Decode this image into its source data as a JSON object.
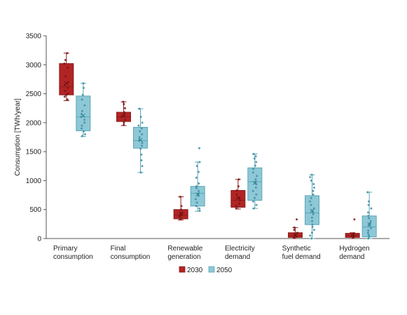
{
  "chart_data": {
    "type": "boxplot",
    "ylabel": "Consumption [TWh/year]",
    "xlabel": "",
    "ylim": [
      0,
      3500
    ],
    "yticks": [
      0,
      500,
      1000,
      1500,
      2000,
      2500,
      3000,
      3500
    ],
    "grid": false,
    "legend_position": "bottom",
    "categories": [
      [
        "Primary",
        "consumption"
      ],
      [
        "Final",
        "consumption"
      ],
      [
        "Renewable",
        "generation"
      ],
      [
        "Electricity",
        "demand"
      ],
      [
        "Synthetic",
        "fuel demand"
      ],
      [
        "Hydrogen",
        "demand"
      ]
    ],
    "series": [
      {
        "name": "2030",
        "color": "#b22424",
        "edge": "#8c1c1c",
        "boxes": [
          {
            "min": 2380,
            "q1": 2480,
            "median": 2620,
            "q3": 3020,
            "max": 3200,
            "mean": 2680,
            "points": [
              2400,
              2450,
              2480,
              2500,
              2550,
              2600,
              2650,
              2700,
              2800,
              2950,
              3020,
              3080,
              3200
            ]
          },
          {
            "min": 1950,
            "q1": 2020,
            "median": 2100,
            "q3": 2180,
            "max": 2360,
            "mean": 2120,
            "points": [
              1960,
              2000,
              2050,
              2100,
              2150,
              2180,
              2250,
              2320,
              2360
            ]
          },
          {
            "min": 320,
            "q1": 340,
            "median": 400,
            "q3": 500,
            "max": 720,
            "mean": 430,
            "points": [
              330,
              350,
              380,
              400,
              420,
              450,
              500,
              560,
              720
            ]
          },
          {
            "min": 510,
            "q1": 540,
            "median": 660,
            "q3": 830,
            "max": 1020,
            "mean": 700,
            "points": [
              520,
              560,
              600,
              660,
              700,
              760,
              830,
              900,
              1020
            ]
          },
          {
            "min": 0,
            "q1": 20,
            "median": 50,
            "q3": 100,
            "max": 190,
            "mean": 60,
            "points": [
              10,
              30,
              50,
              70,
              100,
              150,
              190,
              330
            ]
          },
          {
            "min": 0,
            "q1": 20,
            "median": 50,
            "q3": 90,
            "max": 100,
            "mean": 55,
            "points": [
              10,
              30,
              50,
              70,
              90,
              330
            ]
          }
        ]
      },
      {
        "name": "2050",
        "color": "#8ec8d6",
        "edge": "#5aa7b9",
        "boxes": [
          {
            "min": 1760,
            "q1": 1860,
            "median": 2100,
            "q3": 2460,
            "max": 2680,
            "mean": 2120,
            "points": [
              1770,
              1800,
              1850,
              1900,
              1950,
              2000,
              2050,
              2100,
              2150,
              2200,
              2300,
              2400,
              2480,
              2600,
              2680
            ]
          },
          {
            "min": 1140,
            "q1": 1560,
            "median": 1690,
            "q3": 1920,
            "max": 2240,
            "mean": 1700,
            "points": [
              1140,
              1250,
              1350,
              1450,
              1550,
              1600,
              1650,
              1700,
              1750,
              1800,
              1850,
              1900,
              1950,
              2000,
              2100,
              2240
            ]
          },
          {
            "min": 470,
            "q1": 560,
            "median": 780,
            "q3": 900,
            "max": 1320,
            "mean": 760,
            "points": [
              480,
              520,
              560,
              620,
              680,
              740,
              780,
              820,
              870,
              900,
              950,
              1050,
              1150,
              1250,
              1320,
              1560
            ]
          },
          {
            "min": 520,
            "q1": 660,
            "median": 980,
            "q3": 1220,
            "max": 1460,
            "mean": 960,
            "points": [
              520,
              580,
              640,
              700,
              760,
              820,
              880,
              940,
              980,
              1020,
              1080,
              1140,
              1200,
              1260,
              1320,
              1380,
              1420,
              1460
            ]
          },
          {
            "min": 0,
            "q1": 240,
            "median": 440,
            "q3": 740,
            "max": 1100,
            "mean": 480,
            "points": [
              0,
              50,
              100,
              150,
              200,
              240,
              300,
              360,
              420,
              460,
              520,
              580,
              640,
              700,
              760,
              820,
              880,
              940,
              1000,
              1060,
              1100
            ]
          },
          {
            "min": 0,
            "q1": 30,
            "median": 200,
            "q3": 390,
            "max": 800,
            "mean": 250,
            "points": [
              0,
              30,
              60,
              100,
              140,
              180,
              220,
              260,
              300,
              350,
              390,
              450,
              520,
              580,
              640,
              800
            ]
          }
        ]
      }
    ]
  }
}
